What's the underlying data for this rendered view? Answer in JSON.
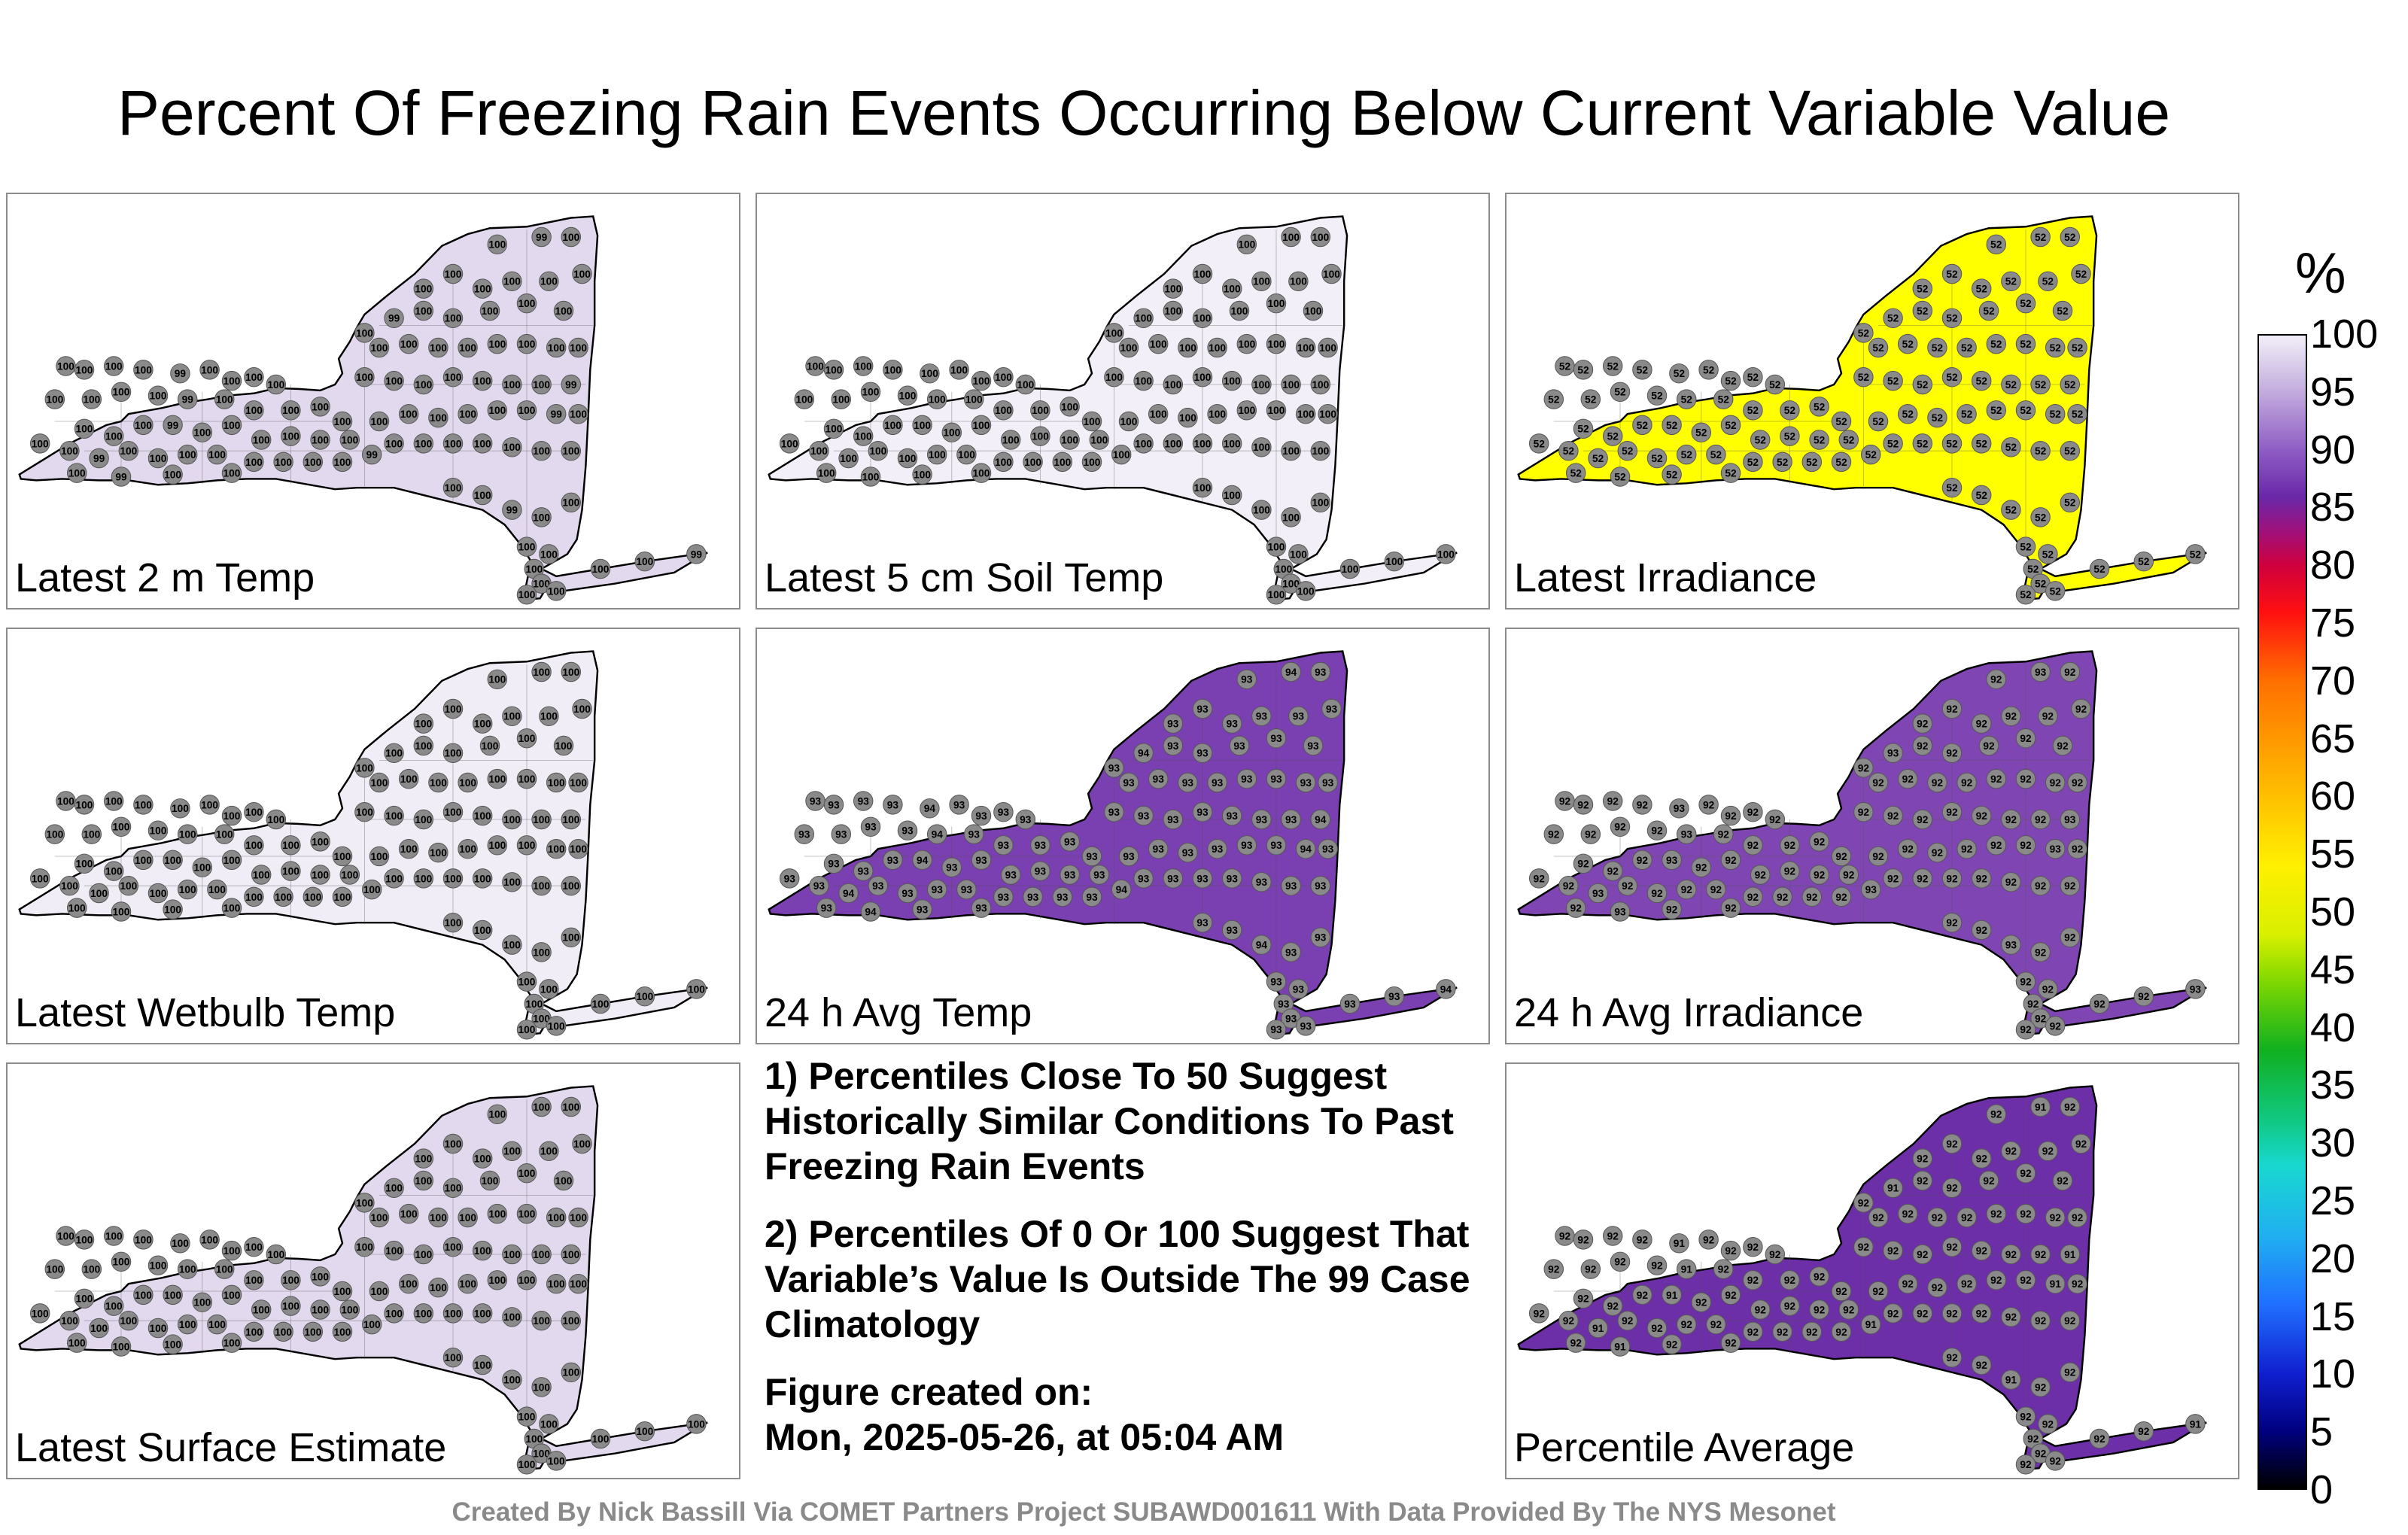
{
  "title": "Percent Of Freezing Rain Events Occurring Below Current Variable Value",
  "panels": [
    {
      "label": "Latest 2 m Temp",
      "fill": "#e3d9ef",
      "marker_value": "100",
      "alt_value": "99"
    },
    {
      "label": "Latest 5 cm Soil Temp",
      "fill": "#f3eff8",
      "marker_value": "100",
      "alt_value": "100"
    },
    {
      "label": "Latest Irradiance",
      "fill": "#ffff00",
      "marker_value": "52",
      "alt_value": "52"
    },
    {
      "label": "Latest Wetbulb Temp",
      "fill": "#f1edf7",
      "marker_value": "100",
      "alt_value": "100"
    },
    {
      "label": "24 h Avg Temp",
      "fill": "#7a3fb0",
      "marker_value": "93",
      "alt_value": "94"
    },
    {
      "label": "24 h Avg Irradiance",
      "fill": "#7f46b3",
      "marker_value": "92",
      "alt_value": "93"
    },
    {
      "label": "Latest Surface Estimate",
      "fill": "#e3d9ef",
      "marker_value": "100",
      "alt_value": "100"
    },
    {
      "label": "Percentile Average",
      "fill": "#6d2fa8",
      "marker_value": "92",
      "alt_value": "91"
    }
  ],
  "notes": {
    "note1": "1) Percentiles Close To 50 Suggest Historically Similar Conditions To Past Freezing Rain Events",
    "note2": "2) Percentiles Of 0 Or 100 Suggest That Variable’s Value Is Outside The 99 Case Climatology",
    "created_label": "Figure created on:",
    "created_date": "Mon, 2025-05-26, at 05:04 AM"
  },
  "footer": "Created By Nick Bassill Via COMET Partners Project SUBAWD001611 With Data Provided By The NYS Mesonet",
  "colorbar": {
    "unit": "%",
    "ticks": [
      "100",
      "95",
      "90",
      "85",
      "80",
      "75",
      "70",
      "65",
      "60",
      "55",
      "50",
      "45",
      "40",
      "35",
      "30",
      "25",
      "20",
      "15",
      "10",
      "5",
      "0"
    ]
  }
}
